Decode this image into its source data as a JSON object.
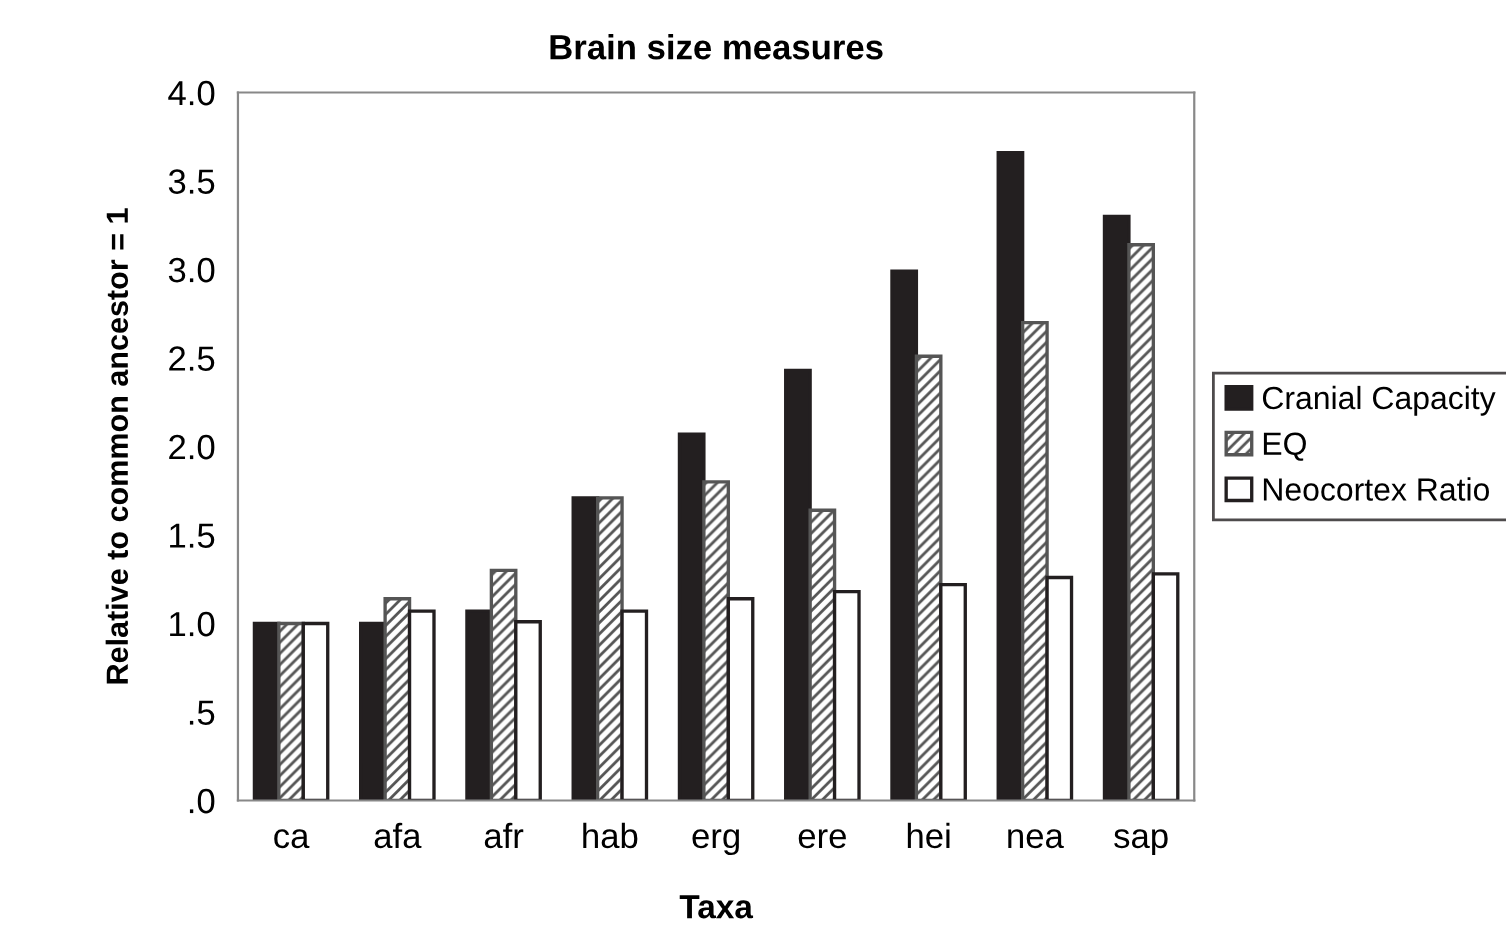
{
  "chart_data": {
    "type": "bar",
    "title": "Brain size measures",
    "xlabel": "Taxa",
    "ylabel": "Relative to common ancestor = 1",
    "categories": [
      "ca",
      "afa",
      "afr",
      "hab",
      "erg",
      "ere",
      "hei",
      "nea",
      "sap"
    ],
    "series": [
      {
        "name": "Cranial Capacity",
        "color": "#231f20",
        "values": [
          1.0,
          1.0,
          1.07,
          1.71,
          2.07,
          2.43,
          2.99,
          3.66,
          3.3
        ]
      },
      {
        "name": "EQ",
        "color": "#555555",
        "values": [
          1.0,
          1.14,
          1.3,
          1.71,
          1.8,
          1.64,
          2.51,
          2.7,
          3.14
        ]
      },
      {
        "name": "Neocortex Ratio",
        "color": "#ffffff",
        "values": [
          1.0,
          1.07,
          1.01,
          1.07,
          1.14,
          1.18,
          1.22,
          1.26,
          1.28
        ]
      }
    ],
    "ylim": [
      0,
      4
    ],
    "yticks": [
      {
        "value": 0,
        "label": ".0"
      },
      {
        "value": 0.5,
        "label": ".5"
      },
      {
        "value": 1,
        "label": "1.0"
      },
      {
        "value": 1.5,
        "label": "1.5"
      },
      {
        "value": 2,
        "label": "2.0"
      },
      {
        "value": 2.5,
        "label": "2.5"
      },
      {
        "value": 3,
        "label": "3.0"
      },
      {
        "value": 3.5,
        "label": "3.5"
      },
      {
        "value": 4,
        "label": "4.0"
      }
    ],
    "legend": "right",
    "grid": false
  }
}
